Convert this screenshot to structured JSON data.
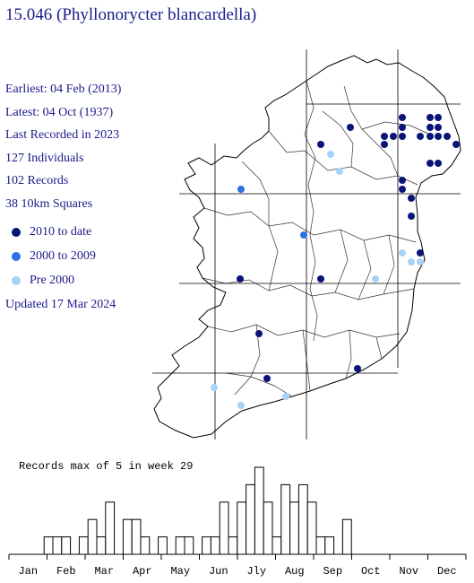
{
  "title": "15.046 (Phyllonorycter blancardella)",
  "stats": {
    "earliest": "Earliest: 04 Feb (2013)",
    "latest": "Latest: 04 Oct (1937)",
    "last_recorded": "Last Recorded in 2023",
    "individuals": "127 Individuals",
    "records": "102 Records",
    "squares": "38 10km Squares"
  },
  "legend": [
    {
      "label": "2010 to date",
      "color": "#0a1478"
    },
    {
      "label": "2000 to 2009",
      "color": "#2f6fe6"
    },
    {
      "label": "Pre 2000",
      "color": "#a8d2f5"
    }
  ],
  "updated": "Updated 17 Mar 2024",
  "chart_data": {
    "type": "bar",
    "title": "Records max of 5 in week 29",
    "ylim": [
      0,
      5
    ],
    "month_labels": [
      "Jan",
      "Feb",
      "Mar",
      "Apr",
      "May",
      "Jun",
      "Jly",
      "Aug",
      "Sep",
      "Oct",
      "Nov",
      "Dec"
    ],
    "weeks": [
      1,
      2,
      3,
      4,
      5,
      6,
      7,
      8,
      9,
      10,
      11,
      12,
      13,
      14,
      15,
      16,
      17,
      18,
      19,
      20,
      21,
      22,
      23,
      24,
      25,
      26,
      27,
      28,
      29,
      30,
      31,
      32,
      33,
      34,
      35,
      36,
      37,
      38,
      39,
      40,
      41,
      42,
      43,
      44,
      45,
      46,
      47,
      48,
      49,
      50,
      51,
      52
    ],
    "values": [
      0,
      0,
      0,
      0,
      1,
      1,
      1,
      0,
      1,
      2,
      1,
      3,
      0,
      2,
      2,
      1,
      0,
      1,
      0,
      1,
      1,
      0,
      1,
      1,
      3,
      1,
      3,
      4,
      5,
      3,
      1,
      4,
      3,
      4,
      3,
      1,
      1,
      0,
      2,
      0,
      0,
      0,
      0,
      0,
      0,
      0,
      0,
      0,
      0,
      0,
      0,
      0
    ]
  }
}
